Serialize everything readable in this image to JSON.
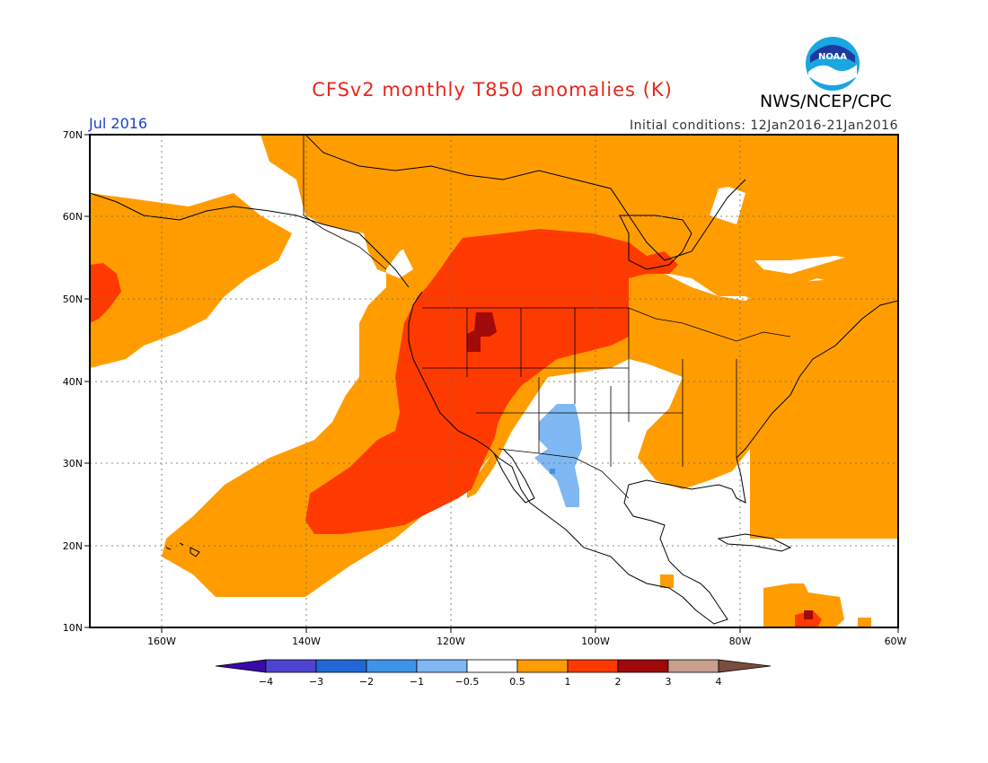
{
  "title": "CFSv2 monthly T850 anomalies (K)",
  "agency": "NWS/NCEP/CPC",
  "valid_month": "Jul 2016",
  "initial_conditions": "Initial conditions: 12Jan2016-21Jan2016",
  "logo": {
    "icon": "noaa-logo",
    "text": "NOAA"
  },
  "colors": {
    "title": "#e8261c",
    "month": "#1b3fcf",
    "n4": "#3a0aa8",
    "n3": "#4f44d2",
    "n2": "#2168d6",
    "n1": "#3f94e8",
    "n05": "#7fb8f2",
    "zero": "#ffffff",
    "p05": "#ff9d00",
    "p1": "#ff3a00",
    "p2": "#a10a0a",
    "p3": "#c8a08e",
    "p4": "#7b4d3e"
  },
  "axes": {
    "lat_labels": [
      "70N",
      "60N",
      "50N",
      "40N",
      "30N",
      "20N",
      "10N"
    ],
    "lon_labels": [
      "160W",
      "140W",
      "120W",
      "100W",
      "80W",
      "60W"
    ],
    "lat_range": [
      10,
      70
    ],
    "lon_range": [
      -172,
      -60
    ]
  },
  "colorbar": {
    "labels": [
      "−4",
      "−3",
      "−2",
      "−1",
      "−0.5",
      "0.5",
      "1",
      "2",
      "3",
      "4"
    ]
  }
}
